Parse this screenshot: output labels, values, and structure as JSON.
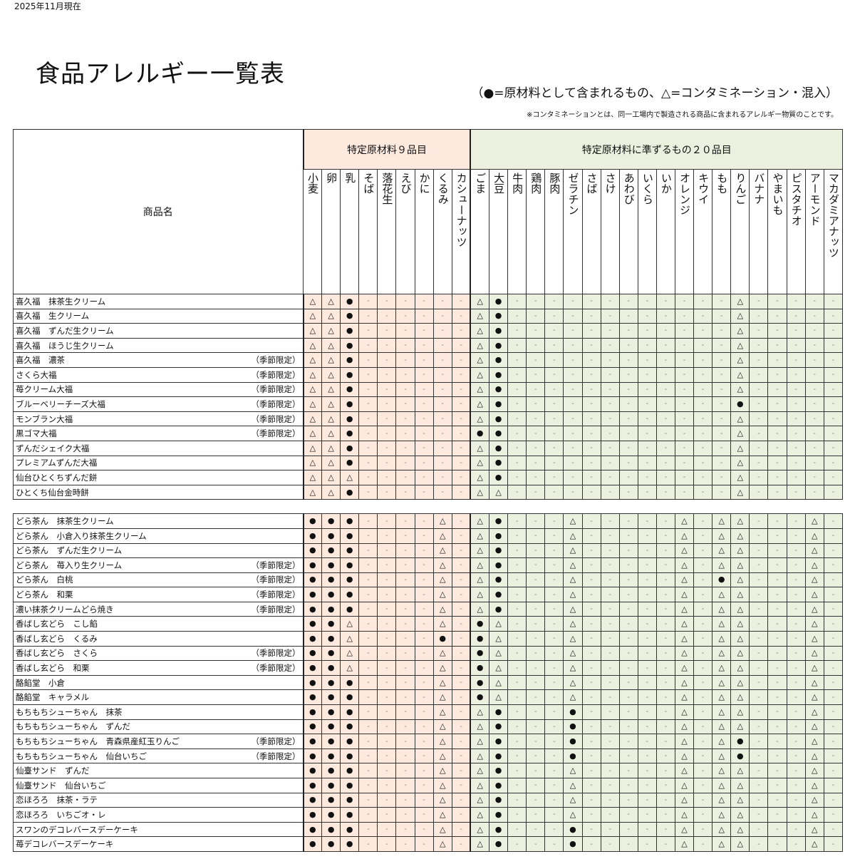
{
  "as_of": "2025年11月現在",
  "title": "食品アレルギー一覧表",
  "legend": "（●=原材料として含まれるもの、△=コンタミネーション・混入）",
  "note": "※コンタミネーションとは、同一工場内で製造される商品に含まれるアレルギー物質のことです。",
  "header": {
    "product_name": "商品名",
    "group1": "特定原材料９品目",
    "group2": "特定原材料に準ずるもの２０品目"
  },
  "colors": {
    "group1_bg": "#fde9de",
    "group2_bg": "#ebf1de"
  },
  "columns": [
    "小麦",
    "卵",
    "乳",
    "そば",
    "落花生",
    "えび",
    "かに",
    "くるみ",
    "カシューナッツ",
    "ごま",
    "大豆",
    "牛肉",
    "鶏肉",
    "豚肉",
    "ゼラチン",
    "さば",
    "さけ",
    "あわび",
    "いくら",
    "いか",
    "オレンジ",
    "キウイ",
    "もも",
    "りんご",
    "バナナ",
    "やまいも",
    "ピスタチオ",
    "アーモンド",
    "マカダミアナッツ"
  ],
  "sections": [
    {
      "rows": [
        {
          "name": "喜久福　抹茶生クリーム",
          "seasonal": "",
          "marks": "△△●------△●------------△-----"
        },
        {
          "name": "喜久福　生クリーム",
          "seasonal": "",
          "marks": "△△●------△●------------△-----"
        },
        {
          "name": "喜久福　ずんだ生クリーム",
          "seasonal": "",
          "marks": "△△●------△●------------△-----"
        },
        {
          "name": "喜久福　ほうじ生クリーム",
          "seasonal": "",
          "marks": "△△●------△●------------△-----"
        },
        {
          "name": "喜久福　濃茶",
          "seasonal": "（季節限定）",
          "marks": "△△●------△●------------△-----"
        },
        {
          "name": "さくら大福",
          "seasonal": "（季節限定）",
          "marks": "△△●------△●------------△-----"
        },
        {
          "name": "苺クリーム大福",
          "seasonal": "（季節限定）",
          "marks": "△△●------△●------------△-----"
        },
        {
          "name": "ブルーベリーチーズ大福",
          "seasonal": "（季節限定）",
          "marks": "△△●------△●------------●-----"
        },
        {
          "name": "モンブラン大福",
          "seasonal": "（季節限定）",
          "marks": "△△●------△●------------△-----"
        },
        {
          "name": "黒ゴマ大福",
          "seasonal": "（季節限定）",
          "marks": "△△●------●●------------△-----"
        },
        {
          "name": "ずんだシェイク大福",
          "seasonal": "",
          "marks": "△△●------△●------------△-----"
        },
        {
          "name": "プレミアムずんだ大福",
          "seasonal": "",
          "marks": "△△●------△●------------△-----"
        },
        {
          "name": "仙台ひとくちずんだ餅",
          "seasonal": "",
          "marks": "△△△------△●------------△-----"
        },
        {
          "name": "ひとくち仙台金時餅",
          "seasonal": "",
          "marks": "△△●------△△------------△-----"
        }
      ]
    },
    {
      "rows": [
        {
          "name": "どら茶ん　抹茶生クリーム",
          "seasonal": "",
          "marks": "●●●----△-△●---△-----△-△△---△-"
        },
        {
          "name": "どら茶ん　小倉入り抹茶生クリーム",
          "seasonal": "",
          "marks": "●●●----△-△●---△-----△-△△---△-"
        },
        {
          "name": "どら茶ん　ずんだ生クリーム",
          "seasonal": "",
          "marks": "●●●----△-△●---△-----△-△△---△-"
        },
        {
          "name": "どら茶ん　苺入り生クリーム",
          "seasonal": "（季節限定）",
          "marks": "●●●----△-△●---△-----△-△△---△-"
        },
        {
          "name": "どら茶ん　白桃",
          "seasonal": "（季節限定）",
          "marks": "●●●----△-△●---△-----△-●△---△-"
        },
        {
          "name": "どら茶ん　和栗",
          "seasonal": "（季節限定）",
          "marks": "●●●----△-△●---△-----△-△△---△-"
        },
        {
          "name": "濃い抹茶クリームどら焼き",
          "seasonal": "（季節限定）",
          "marks": "●●●----△-△●---△-----△-△△---△-"
        },
        {
          "name": "香ばし玄どら　こし餡",
          "seasonal": "",
          "marks": "●●△----△-●△---△-----△-△△---△-"
        },
        {
          "name": "香ばし玄どら　くるみ",
          "seasonal": "",
          "marks": "●●△----●-●△---△-----△-△△---△-"
        },
        {
          "name": "香ばし玄どら　さくら",
          "seasonal": "（季節限定）",
          "marks": "●●△----△-●△---△-----△-△△---△-"
        },
        {
          "name": "香ばし玄どら　和栗",
          "seasonal": "（季節限定）",
          "marks": "●●△----△-●△---△-----△-△△---△-"
        },
        {
          "name": "酪餡堂　小倉",
          "seasonal": "",
          "marks": "●●●----△-●△---△-----△-△△---△-"
        },
        {
          "name": "酪餡堂　キャラメル",
          "seasonal": "",
          "marks": "●●●----△-●△---△-----△-△△---△-"
        },
        {
          "name": "もちもちシューちゃん　抹茶",
          "seasonal": "",
          "marks": "●●●----△-△●---●-----△-△△---△-"
        },
        {
          "name": "もちもちシューちゃん　ずんだ",
          "seasonal": "",
          "marks": "●●●----△-△●---●-----△-△△---△-"
        },
        {
          "name": "もちもちシューちゃん　青森県産紅玉りんご",
          "seasonal": "（季節限定）",
          "marks": "●●●----△-△●---●-----△-△●---△-"
        },
        {
          "name": "もちもちシューちゃん　仙台いちご",
          "seasonal": "（季節限定）",
          "marks": "●●●----△-△●---●-----△-△●---△-"
        },
        {
          "name": "仙臺サンド　ずんだ",
          "seasonal": "",
          "marks": "●●●----△-△●---△-----△-△△---△-"
        },
        {
          "name": "仙臺サンド　仙台いちご",
          "seasonal": "",
          "marks": "●●●----△-△●---△-----△-△△---△-"
        },
        {
          "name": "恋ほろろ　抹茶・ラテ",
          "seasonal": "",
          "marks": "●●●----△-△●---△-----△-△△---△-"
        },
        {
          "name": "恋ほろろ　いちごオ・レ",
          "seasonal": "",
          "marks": "●●●----△-△●---△-----△-△△---△-"
        },
        {
          "name": "スワンのデコレバースデーケーキ",
          "seasonal": "",
          "marks": "●●●----△-△●---●-----△-△△---△-"
        },
        {
          "name": "苺デコレバースデーケーキ",
          "seasonal": "",
          "marks": "●●●----△-△●---●-----△-△△---△-"
        }
      ]
    }
  ]
}
